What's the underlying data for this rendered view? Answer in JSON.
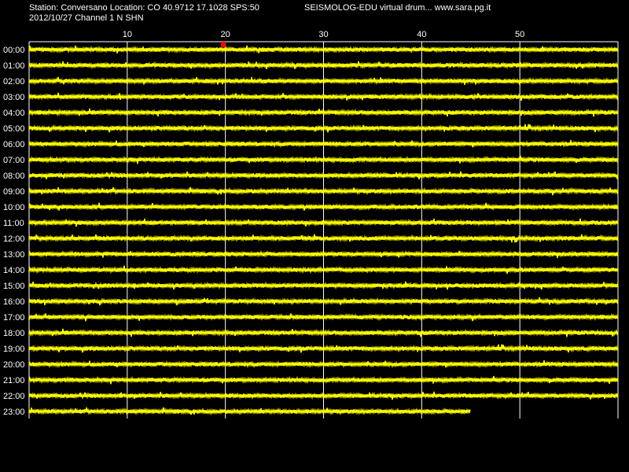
{
  "header": {
    "station_info": "Station: Conversano Location: CO 40.9712 17.1028 SPS:50",
    "app_title": "SEISMOLOG-EDU virtual drum... www.sara.pg.it",
    "date_channel": "2012/10/27  Channel 1 N SHN"
  },
  "x_axis": {
    "unit": "minutes",
    "max": 60,
    "tick_labels": [
      "10",
      "20",
      "30",
      "40",
      "50"
    ]
  },
  "rows": [
    "00:00",
    "01:00",
    "02:00",
    "03:00",
    "04:00",
    "05:00",
    "06:00",
    "07:00",
    "08:00",
    "09:00",
    "10:00",
    "11:00",
    "12:00",
    "13:00",
    "14:00",
    "15:00",
    "16:00",
    "17:00",
    "18:00",
    "19:00",
    "20:00",
    "21:00",
    "22:00",
    "23:00"
  ],
  "last_row_end_minute": 45,
  "time_marker_minute": 19.8,
  "colors": {
    "background": "#000000",
    "trace": "#ffff00",
    "grid": "#ffffff",
    "marker": "#ff0000",
    "text": "#ffffff"
  }
}
